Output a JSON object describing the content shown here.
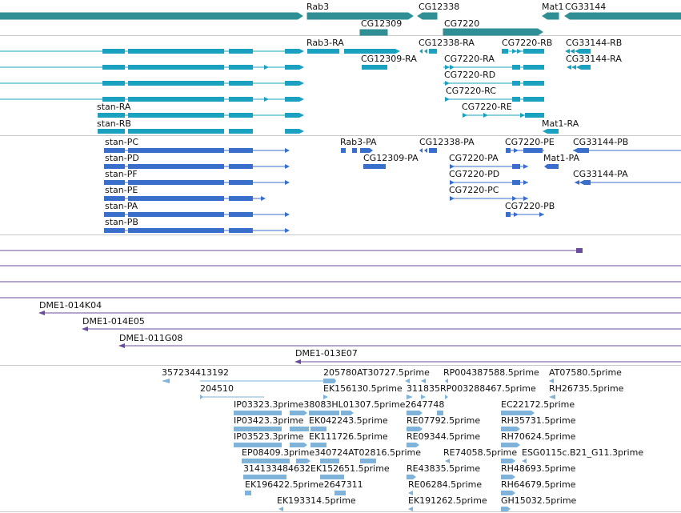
{
  "colors": {
    "gene": "#2f8f94",
    "mrna": "#1aa1bf",
    "protein": "#3a6ecb",
    "clone": "#6a4c9c",
    "est": "#7fb3d9",
    "divider": "#c8c8c8"
  },
  "tracks": {
    "genes": [
      {
        "label": "Rab3"
      },
      {
        "label": "CG12338"
      },
      {
        "label": "Mat1"
      },
      {
        "label": "CG33144"
      },
      {
        "label": "CG12309"
      },
      {
        "label": "CG7220"
      }
    ],
    "transcripts": [
      {
        "label": "Rab3-RA"
      },
      {
        "label": "CG12338-RA"
      },
      {
        "label": "CG7220-RB"
      },
      {
        "label": "CG33144-RB"
      },
      {
        "label": "CG12309-RA"
      },
      {
        "label": "CG7220-RA"
      },
      {
        "label": "CG33144-RA"
      },
      {
        "label": "CG7220-RD"
      },
      {
        "label": "CG7220-RC"
      },
      {
        "label": "stan-RA"
      },
      {
        "label": "CG7220-RE"
      },
      {
        "label": "stan-RB"
      },
      {
        "label": "Mat1-RA"
      }
    ],
    "proteins": [
      {
        "label": "stan-PC"
      },
      {
        "label": "Rab3-PA"
      },
      {
        "label": "CG12338-PA"
      },
      {
        "label": "CG7220-PE"
      },
      {
        "label": "CG33144-PB"
      },
      {
        "label": "stan-PD"
      },
      {
        "label": "CG12309-PA"
      },
      {
        "label": "CG7220-PA"
      },
      {
        "label": "Mat1-PA"
      },
      {
        "label": "stan-PF"
      },
      {
        "label": "CG7220-PD"
      },
      {
        "label": "CG33144-PA"
      },
      {
        "label": "stan-PE"
      },
      {
        "label": "CG7220-PC"
      },
      {
        "label": "stan-PA"
      },
      {
        "label": "CG7220-PB"
      },
      {
        "label": "stan-PB"
      }
    ],
    "clones": [
      {
        "label": "DME1-014K04"
      },
      {
        "label": "DME1-014E05"
      },
      {
        "label": "DME1-011G08"
      },
      {
        "label": "DME1-013E07"
      }
    ],
    "ests": [
      {
        "label": "357234413192"
      },
      {
        "label": "205780AT30727.5prime"
      },
      {
        "label": "RP004387588.5prime"
      },
      {
        "label": "AT07580.5prime"
      },
      {
        "label": "204510"
      },
      {
        "label": "EK156130.5prime"
      },
      {
        "label": "311835RP003288467.5prime"
      },
      {
        "label": "RH26735.5prime"
      },
      {
        "label": "IP03323.3prime38083HL01307.5prime2647748"
      },
      {
        "label": "EC22172.5prime"
      },
      {
        "label": "IP03423.3prime"
      },
      {
        "label": "EK042243.5prime"
      },
      {
        "label": "RE07792.5prime"
      },
      {
        "label": "RH35731.5prime"
      },
      {
        "label": "IP03523.3prime"
      },
      {
        "label": "EK111726.5prime"
      },
      {
        "label": "RE09344.5prime"
      },
      {
        "label": "RH70624.5prime"
      },
      {
        "label": "EP08409.3prime340724AT02816.5prime"
      },
      {
        "label": "RE74058.5prime"
      },
      {
        "label": "ESG0115c.B21_G11.3prime"
      },
      {
        "label": "314133484632EK152651.5prime"
      },
      {
        "label": "RE43835.5prime"
      },
      {
        "label": "RH48693.5prime"
      },
      {
        "label": "EK196422.5prime2647311"
      },
      {
        "label": "RE06284.5prime"
      },
      {
        "label": "RH64679.5prime"
      },
      {
        "label": "EK193314.5prime"
      },
      {
        "label": "EK191262.5prime"
      },
      {
        "label": "GH15032.5prime"
      }
    ]
  }
}
